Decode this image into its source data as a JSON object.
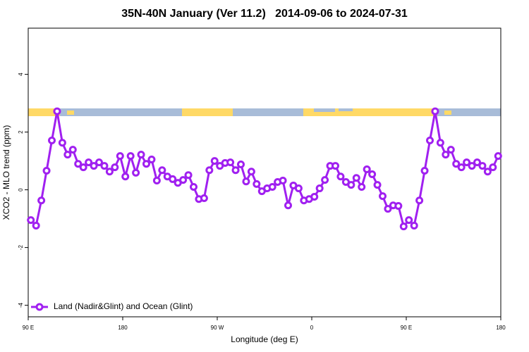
{
  "chart_data": {
    "type": "line",
    "title": "35N-40N January (Ver 11.2)   2014-09-06 to 2024-07-31",
    "x_label": "Longitude (deg E)",
    "y_label": "XCO2 - MLO trend (ppm)",
    "x": [
      92.5,
      97.5,
      102.5,
      107.5,
      112.5,
      117.5,
      122.5,
      127.5,
      132.5,
      137.5,
      142.5,
      147.5,
      152.5,
      157.5,
      162.5,
      167.5,
      172.5,
      177.5,
      182.5,
      187.5,
      192.5,
      197.5,
      202.5,
      207.5,
      212.5,
      217.5,
      222.5,
      227.5,
      232.5,
      237.5,
      242.5,
      247.5,
      252.5,
      257.5,
      262.5,
      267.5,
      272.5,
      277.5,
      282.5,
      287.5,
      292.5,
      297.5,
      302.5,
      307.5,
      312.5,
      317.5,
      322.5,
      327.5,
      332.5,
      337.5,
      342.5,
      347.5,
      352.5,
      357.5,
      362.5,
      367.5,
      372.5,
      377.5,
      382.5,
      387.5,
      392.5,
      397.5,
      402.5,
      407.5,
      412.5,
      417.5,
      422.5,
      427.5,
      432.5,
      437.5,
      442.5,
      447.5,
      452.5,
      457.5,
      462.5,
      467.5,
      472.5,
      477.5,
      482.5,
      487.5,
      492.5,
      497.5,
      502.5,
      507.5,
      512.5,
      517.5,
      522.5,
      527.5,
      532.5,
      537.5
    ],
    "series": [
      {
        "name": "Land (Nadir&Glint) and Ocean (Glint)",
        "color": "#a020f0",
        "values": [
          -1.05,
          -1.24,
          -0.37,
          0.66,
          1.71,
          2.72,
          1.63,
          1.22,
          1.39,
          0.9,
          0.78,
          0.95,
          0.83,
          0.95,
          0.83,
          0.63,
          0.78,
          1.17,
          0.46,
          1.17,
          0.59,
          1.22,
          0.9,
          1.05,
          0.32,
          0.68,
          0.46,
          0.37,
          0.24,
          0.34,
          0.51,
          0.1,
          -0.32,
          -0.29,
          0.68,
          1.0,
          0.83,
          0.93,
          0.95,
          0.68,
          0.88,
          0.29,
          0.63,
          0.2,
          -0.05,
          0.05,
          0.1,
          0.27,
          0.32,
          -0.54,
          0.15,
          0.05,
          -0.37,
          -0.32,
          -0.24,
          0.05,
          0.34,
          0.83,
          0.83,
          0.46,
          0.27,
          0.17,
          0.41,
          0.1,
          0.71,
          0.54,
          0.17,
          -0.22,
          -0.66,
          -0.54,
          -0.56,
          -1.27,
          -1.05,
          -1.24,
          -0.37,
          0.66,
          1.71,
          2.72,
          1.63,
          1.22,
          1.39,
          0.9,
          0.78,
          0.95,
          0.83,
          0.95,
          0.83,
          0.63,
          0.78,
          1.17
        ]
      }
    ],
    "xlim": [
      90,
      540
    ],
    "xticks": [
      {
        "value": 90,
        "label": "90 E"
      },
      180,
      {
        "value": 270,
        "label": "90 W"
      },
      {
        "value": 360,
        "label": "0"
      },
      {
        "value": 450,
        "label": "90 E"
      },
      {
        "value": 540,
        "label": "180"
      }
    ],
    "ylim": [
      -4.4,
      5.6
    ],
    "yticks": [
      -4,
      -2,
      0,
      2,
      4
    ],
    "legend": "bottom-left"
  }
}
